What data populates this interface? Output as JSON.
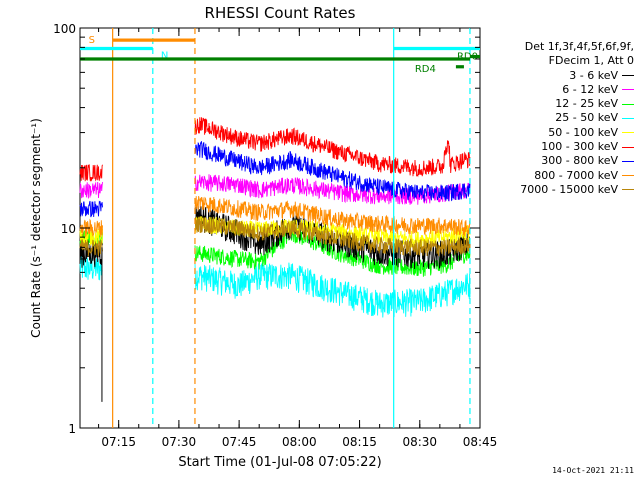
{
  "chart_data": {
    "type": "line",
    "title": "RHESSI Count Rates",
    "xlabel": "Start Time (01-Jul-08 07:05:22)",
    "ylabel": "Count Rate (s⁻¹ detector segment⁻¹)",
    "yscale": "log",
    "ylim": [
      1,
      100
    ],
    "xlim": [
      "07:05:22",
      "08:45:00"
    ],
    "x_ticks": [
      "07:15",
      "07:30",
      "07:45",
      "08:00",
      "08:15",
      "08:30",
      "08:45"
    ],
    "y_ticks": [
      "1",
      "10",
      "100"
    ],
    "legend_header": [
      "Det 1f,3f,4f,5f,6f,9f,",
      "FDecim 1, Att 0"
    ],
    "legend_position": "right",
    "series": [
      {
        "name": "3 - 6 keV",
        "color": "#000000",
        "values": [
          {
            "t": "07:05:22",
            "y": 7.5
          },
          {
            "t": "07:10:30",
            "y": 7.6
          },
          {
            "t": "07:35:00",
            "y": 11.5
          },
          {
            "t": "07:45:00",
            "y": 9.5
          },
          {
            "t": "07:50:00",
            "y": 8.3
          },
          {
            "t": "07:58:00",
            "y": 10.5
          },
          {
            "t": "08:10:00",
            "y": 8.6
          },
          {
            "t": "08:20:00",
            "y": 7.6
          },
          {
            "t": "08:30:00",
            "y": 7.4
          },
          {
            "t": "08:37:00",
            "y": 7.5
          },
          {
            "t": "08:41:00",
            "y": 8.3
          }
        ]
      },
      {
        "name": "6 - 12 keV",
        "color": "#ff00ff",
        "values": [
          {
            "t": "07:05:22",
            "y": 15.5
          },
          {
            "t": "07:10:30",
            "y": 15.5
          },
          {
            "t": "07:35:00",
            "y": 17.0
          },
          {
            "t": "07:45:00",
            "y": 16.5
          },
          {
            "t": "07:50:00",
            "y": 15.5
          },
          {
            "t": "07:58:00",
            "y": 16.5
          },
          {
            "t": "08:10:00",
            "y": 15.0
          },
          {
            "t": "08:20:00",
            "y": 14.5
          },
          {
            "t": "08:30:00",
            "y": 14.5
          },
          {
            "t": "08:37:00",
            "y": 15.0
          },
          {
            "t": "08:41:00",
            "y": 15.5
          }
        ]
      },
      {
        "name": "12 - 25 keV",
        "color": "#00ff00",
        "values": [
          {
            "t": "07:05:22",
            "y": 9.0
          },
          {
            "t": "07:10:30",
            "y": 9.0
          },
          {
            "t": "07:35:00",
            "y": 7.5
          },
          {
            "t": "07:45:00",
            "y": 7.0
          },
          {
            "t": "07:50:00",
            "y": 6.8
          },
          {
            "t": "07:58:00",
            "y": 9.5
          },
          {
            "t": "08:10:00",
            "y": 7.5
          },
          {
            "t": "08:20:00",
            "y": 6.5
          },
          {
            "t": "08:30:00",
            "y": 6.3
          },
          {
            "t": "08:37:00",
            "y": 6.6
          },
          {
            "t": "08:41:00",
            "y": 7.4
          }
        ]
      },
      {
        "name": "25 - 50 keV",
        "color": "#00ffff",
        "values": [
          {
            "t": "07:05:22",
            "y": 6.3
          },
          {
            "t": "07:10:30",
            "y": 6.3
          },
          {
            "t": "07:35:00",
            "y": 5.8
          },
          {
            "t": "07:45:00",
            "y": 5.2
          },
          {
            "t": "07:50:00",
            "y": 5.8
          },
          {
            "t": "07:58:00",
            "y": 5.8
          },
          {
            "t": "08:10:00",
            "y": 4.8
          },
          {
            "t": "08:20:00",
            "y": 4.2
          },
          {
            "t": "08:30:00",
            "y": 4.3
          },
          {
            "t": "08:37:00",
            "y": 4.8
          },
          {
            "t": "08:41:00",
            "y": 5.2
          }
        ]
      },
      {
        "name": "50 - 100 keV",
        "color": "#ffff00",
        "values": [
          {
            "t": "07:05:22",
            "y": 9.0
          },
          {
            "t": "07:10:30",
            "y": 9.0
          },
          {
            "t": "07:35:00",
            "y": 10.5
          },
          {
            "t": "07:45:00",
            "y": 10.0
          },
          {
            "t": "07:50:00",
            "y": 9.8
          },
          {
            "t": "07:58:00",
            "y": 10.2
          },
          {
            "t": "08:10:00",
            "y": 9.6
          },
          {
            "t": "08:20:00",
            "y": 9.0
          },
          {
            "t": "08:30:00",
            "y": 8.8
          },
          {
            "t": "08:37:00",
            "y": 9.0
          },
          {
            "t": "08:41:00",
            "y": 9.5
          }
        ]
      },
      {
        "name": "100 - 300 keV",
        "color": "#ff0000",
        "values": [
          {
            "t": "07:05:22",
            "y": 19.0
          },
          {
            "t": "07:10:30",
            "y": 19.0
          },
          {
            "t": "07:35:00",
            "y": 33.0
          },
          {
            "t": "07:45:00",
            "y": 28.0
          },
          {
            "t": "07:50:00",
            "y": 26.5
          },
          {
            "t": "07:58:00",
            "y": 29.0
          },
          {
            "t": "08:10:00",
            "y": 24.0
          },
          {
            "t": "08:20:00",
            "y": 21.0
          },
          {
            "t": "08:30:00",
            "y": 20.0
          },
          {
            "t": "08:37:00",
            "y": 20.5
          },
          {
            "t": "08:41:00",
            "y": 22.0
          }
        ]
      },
      {
        "name": "300 - 800 keV",
        "color": "#0000ff",
        "values": [
          {
            "t": "07:05:22",
            "y": 12.5
          },
          {
            "t": "07:10:30",
            "y": 12.5
          },
          {
            "t": "07:35:00",
            "y": 25.0
          },
          {
            "t": "07:45:00",
            "y": 21.5
          },
          {
            "t": "07:50:00",
            "y": 20.0
          },
          {
            "t": "07:58:00",
            "y": 22.0
          },
          {
            "t": "08:10:00",
            "y": 18.0
          },
          {
            "t": "08:20:00",
            "y": 16.0
          },
          {
            "t": "08:30:00",
            "y": 15.0
          },
          {
            "t": "08:37:00",
            "y": 15.0
          },
          {
            "t": "08:41:00",
            "y": 15.5
          }
        ]
      },
      {
        "name": "800 - 7000 keV",
        "color": "#ff8c00",
        "values": [
          {
            "t": "07:05:22",
            "y": 10.0
          },
          {
            "t": "07:10:30",
            "y": 10.0
          },
          {
            "t": "07:35:00",
            "y": 13.5
          },
          {
            "t": "07:45:00",
            "y": 12.5
          },
          {
            "t": "07:50:00",
            "y": 12.0
          },
          {
            "t": "07:58:00",
            "y": 12.5
          },
          {
            "t": "08:10:00",
            "y": 11.0
          },
          {
            "t": "08:20:00",
            "y": 10.5
          },
          {
            "t": "08:30:00",
            "y": 10.3
          },
          {
            "t": "08:37:00",
            "y": 10.3
          },
          {
            "t": "08:41:00",
            "y": 10.0
          }
        ]
      },
      {
        "name": "7000 - 15000 keV",
        "color": "#b8860b",
        "values": [
          {
            "t": "07:05:22",
            "y": 8.0
          },
          {
            "t": "07:10:30",
            "y": 8.0
          },
          {
            "t": "07:35:00",
            "y": 10.5
          },
          {
            "t": "07:45:00",
            "y": 10.0
          },
          {
            "t": "07:50:00",
            "y": 9.5
          },
          {
            "t": "07:58:00",
            "y": 10.0
          },
          {
            "t": "08:10:00",
            "y": 8.8
          },
          {
            "t": "08:20:00",
            "y": 8.2
          },
          {
            "t": "08:30:00",
            "y": 8.0
          },
          {
            "t": "08:37:00",
            "y": 8.0
          },
          {
            "t": "08:41:00",
            "y": 8.2
          }
        ]
      }
    ],
    "data_gaps": [
      [
        "07:11:00",
        "07:34:00"
      ]
    ],
    "flag_bars": [
      {
        "label": "S",
        "color": "#ff8c00",
        "start": "07:13:30",
        "end": "07:34:00",
        "level": 87
      },
      {
        "label": "N",
        "color": "#00ffff",
        "start": "07:05:22",
        "end": "07:23:30",
        "level": 79
      },
      {
        "label": "",
        "color": "#00ffff",
        "start": "08:23:30",
        "end": "08:45:00",
        "level": 79
      },
      {
        "label": "",
        "color": "#008000",
        "start": "07:05:22",
        "end": "08:42:30",
        "level": 70
      },
      {
        "label": "RD0",
        "color": "#008000",
        "start": "08:42:30",
        "end": "08:45:00",
        "level": 72
      },
      {
        "label": "RD4",
        "color": "#008000",
        "start": "08:39:00",
        "end": "08:41:00",
        "level": 64
      }
    ],
    "vertical_markers": [
      {
        "t": "07:13:30",
        "color": "#ff8c00",
        "style": "solid"
      },
      {
        "t": "07:23:30",
        "color": "#00ffff",
        "style": "dashed"
      },
      {
        "t": "07:34:00",
        "color": "#ff8c00",
        "style": "dashed"
      },
      {
        "t": "08:23:30",
        "color": "#00ffff",
        "style": "solid"
      },
      {
        "t": "08:42:30",
        "color": "#00ffff",
        "style": "dashed"
      }
    ]
  },
  "timestamp": "14-Oct-2021 21:11"
}
